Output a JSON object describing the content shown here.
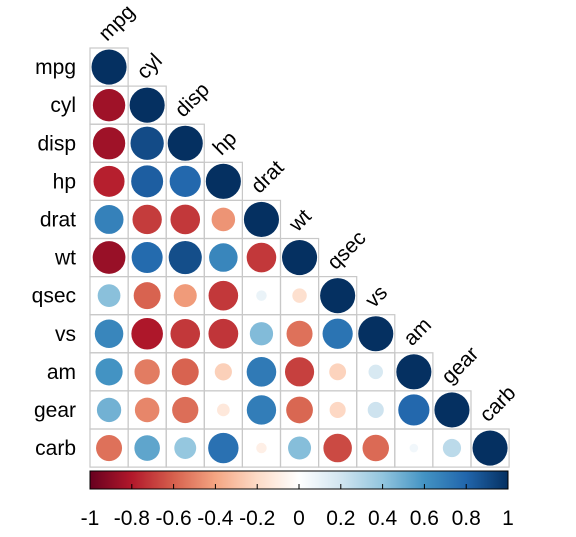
{
  "chart_data": {
    "type": "heatmap",
    "variables": [
      "mpg",
      "cyl",
      "disp",
      "hp",
      "drat",
      "wt",
      "qsec",
      "vs",
      "am",
      "gear",
      "carb"
    ],
    "matrix": [
      [
        1.0,
        -0.85,
        -0.85,
        -0.78,
        0.68,
        -0.87,
        0.42,
        0.66,
        0.6,
        0.48,
        -0.55
      ],
      [
        -0.85,
        1.0,
        0.9,
        0.83,
        -0.7,
        0.78,
        -0.59,
        -0.81,
        -0.52,
        -0.49,
        0.53
      ],
      [
        -0.85,
        0.9,
        1.0,
        0.79,
        -0.71,
        0.89,
        -0.43,
        -0.71,
        -0.59,
        -0.56,
        0.39
      ],
      [
        -0.78,
        0.83,
        0.79,
        1.0,
        -0.45,
        0.66,
        -0.71,
        -0.72,
        -0.24,
        -0.13,
        0.75
      ],
      [
        0.68,
        -0.7,
        -0.71,
        -0.45,
        1.0,
        -0.71,
        0.09,
        0.44,
        0.71,
        0.7,
        -0.09
      ],
      [
        -0.87,
        0.78,
        0.89,
        0.66,
        -0.71,
        1.0,
        -0.17,
        -0.55,
        -0.69,
        -0.58,
        0.43
      ],
      [
        0.42,
        -0.59,
        -0.43,
        -0.71,
        0.09,
        -0.17,
        1.0,
        0.74,
        -0.23,
        -0.21,
        -0.66
      ],
      [
        0.66,
        -0.81,
        -0.71,
        -0.72,
        0.44,
        -0.55,
        0.74,
        1.0,
        0.17,
        0.21,
        -0.57
      ],
      [
        0.6,
        -0.52,
        -0.59,
        -0.24,
        0.71,
        -0.69,
        -0.23,
        0.17,
        1.0,
        0.79,
        0.06
      ],
      [
        0.48,
        -0.49,
        -0.56,
        -0.13,
        0.7,
        -0.58,
        -0.21,
        0.21,
        0.79,
        1.0,
        0.27
      ],
      [
        -0.55,
        0.53,
        0.39,
        0.75,
        -0.09,
        0.43,
        -0.66,
        -0.57,
        0.06,
        0.27,
        1.0
      ]
    ],
    "triangle": "lower",
    "color_scale": {
      "range": [
        -1,
        1
      ],
      "stops": [
        {
          "value": -1.0,
          "color": "#67001f"
        },
        {
          "value": -0.8,
          "color": "#b2182b"
        },
        {
          "value": -0.6,
          "color": "#d6604d"
        },
        {
          "value": -0.4,
          "color": "#f4a582"
        },
        {
          "value": -0.2,
          "color": "#fddbc7"
        },
        {
          "value": 0.0,
          "color": "#ffffff"
        },
        {
          "value": 0.2,
          "color": "#d1e5f0"
        },
        {
          "value": 0.4,
          "color": "#92c5de"
        },
        {
          "value": 0.6,
          "color": "#4393c3"
        },
        {
          "value": 0.8,
          "color": "#2166ac"
        },
        {
          "value": 1.0,
          "color": "#053061"
        }
      ],
      "tick_labels": [
        "-1",
        "-0.8",
        "-0.6",
        "-0.4",
        "-0.2",
        "0",
        "0.2",
        "0.4",
        "0.6",
        "0.8",
        "1"
      ]
    },
    "legend_position": "bottom",
    "grid": true
  }
}
